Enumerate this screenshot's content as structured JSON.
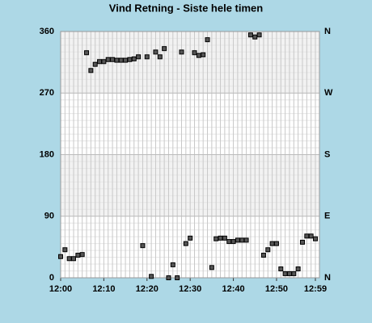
{
  "chart_data": {
    "type": "scatter",
    "title": "Vind Retning - Siste hele timen",
    "x": [
      0,
      1,
      2,
      3,
      4,
      5,
      6,
      7,
      8,
      9,
      10,
      11,
      12,
      13,
      14,
      15,
      16,
      17,
      18,
      19,
      20,
      21,
      22,
      23,
      24,
      25,
      26,
      27,
      28,
      29,
      30,
      31,
      32,
      33,
      34,
      35,
      36,
      37,
      38,
      39,
      40,
      41,
      42,
      43,
      44,
      45,
      46,
      47,
      48,
      49,
      50,
      51,
      52,
      53,
      54,
      55,
      56,
      57,
      58,
      59
    ],
    "values": [
      31,
      41,
      28,
      28,
      33,
      34,
      329,
      303,
      312,
      316,
      316,
      319,
      319,
      318,
      318,
      318,
      319,
      320,
      323,
      47,
      323,
      2,
      330,
      323,
      335,
      0,
      19,
      0,
      330,
      50,
      58,
      329,
      325,
      326,
      348,
      15,
      57,
      58,
      58,
      53,
      53,
      55,
      55,
      55,
      355,
      352,
      355,
      33,
      41,
      50,
      50,
      13,
      6,
      6,
      6,
      13,
      52,
      61,
      61,
      57
    ],
    "color": "#555555",
    "xlim": [
      0,
      59
    ],
    "xticks": [
      {
        "value": 0,
        "label": "12:00"
      },
      {
        "value": 10,
        "label": "12:10"
      },
      {
        "value": 20,
        "label": "12:20"
      },
      {
        "value": 30,
        "label": "12:30"
      },
      {
        "value": 40,
        "label": "12:40"
      },
      {
        "value": 50,
        "label": "12:50"
      },
      {
        "value": 59,
        "label": "12:59"
      }
    ],
    "ylim": [
      0,
      360
    ],
    "yticks": [
      0,
      90,
      180,
      270,
      360
    ],
    "y2lim": [
      0,
      360
    ],
    "y2ticks": [
      {
        "value": 0,
        "label": "N"
      },
      {
        "value": 90,
        "label": "E"
      },
      {
        "value": 180,
        "label": "S"
      },
      {
        "value": 270,
        "label": "W"
      },
      {
        "value": 360,
        "label": "N"
      }
    ],
    "grid": true
  }
}
